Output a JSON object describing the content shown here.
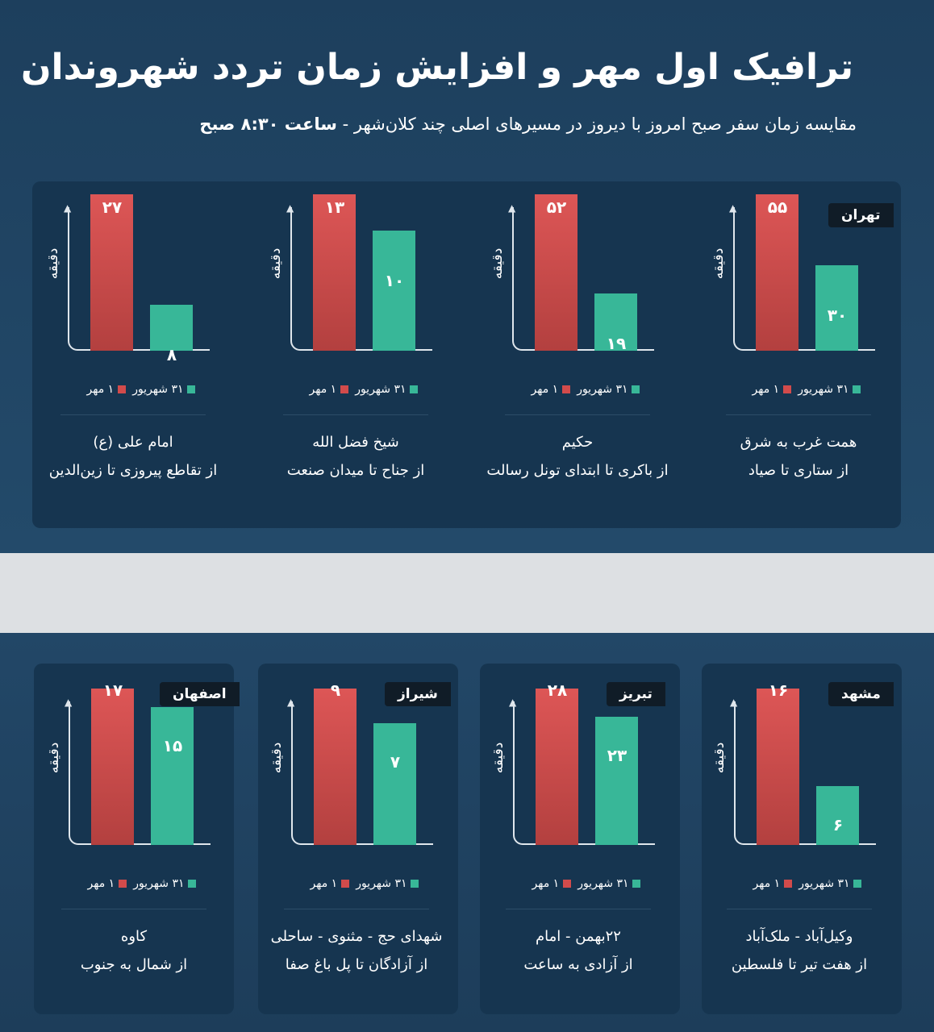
{
  "title": "ترافیک اول مهر و افزایش زمان تردد شهروندان",
  "subtitle": "مقایسه زمان سفر صبح امروز با دیروز در مسیرهای اصلی چند کلان‌شهر - ",
  "subtitle_time": "ساعت ۸:۳۰ صبح",
  "colors": {
    "mehr1": "#d24b4b",
    "shahrivar31": "#38b798"
  },
  "chart_data": {
    "type": "bar",
    "ylabel": "دقیقه",
    "legend": [
      "۳۱ شهریور",
      "۱ مهر"
    ],
    "series_names": [
      "1 Mehr",
      "31 Shahrivar"
    ],
    "charts": [
      {
        "city": "تهران",
        "route": "همت غرب به شرق",
        "desc": "از ستاری تا صیاد",
        "values": [
          55,
          30
        ],
        "labels": [
          "۵۵",
          "۳۰"
        ]
      },
      {
        "city": "",
        "route": "حکیم",
        "desc": "از باکری تا ابتدای تونل رسالت",
        "values": [
          52,
          19
        ],
        "labels": [
          "۵۲",
          "۱۹"
        ]
      },
      {
        "city": "",
        "route": "شیخ فضل الله",
        "desc": "از جناح تا میدان صنعت",
        "values": [
          13,
          10
        ],
        "labels": [
          "۱۳",
          "۱۰"
        ]
      },
      {
        "city": "",
        "route": "امام علی (ع)",
        "desc": "از تقاطع پیروزی تا زین‌الدین",
        "values": [
          27,
          8
        ],
        "labels": [
          "۲۷",
          "۸"
        ]
      },
      {
        "city": "مشهد",
        "route": "وکیل‌آباد - ملک‌آباد",
        "desc": "از هفت تیر تا فلسطین",
        "values": [
          16,
          6
        ],
        "labels": [
          "۱۶",
          "۶"
        ]
      },
      {
        "city": "تبریز",
        "route": "۲۲بهمن - امام",
        "desc": "از آزادی به ساعت",
        "values": [
          28,
          23
        ],
        "labels": [
          "۲۸",
          "۲۳"
        ]
      },
      {
        "city": "شیراز",
        "route": "شهدای حج - مثنوی - ساحلی",
        "desc": "از آزادگان تا پل باغ صفا",
        "values": [
          9,
          7
        ],
        "labels": [
          "۹",
          "۷"
        ]
      },
      {
        "city": "اصفهان",
        "route": "کاوه",
        "desc": "از شمال به جنوب",
        "values": [
          17,
          15
        ],
        "labels": [
          "۱۷",
          "۱۵"
        ]
      }
    ]
  }
}
